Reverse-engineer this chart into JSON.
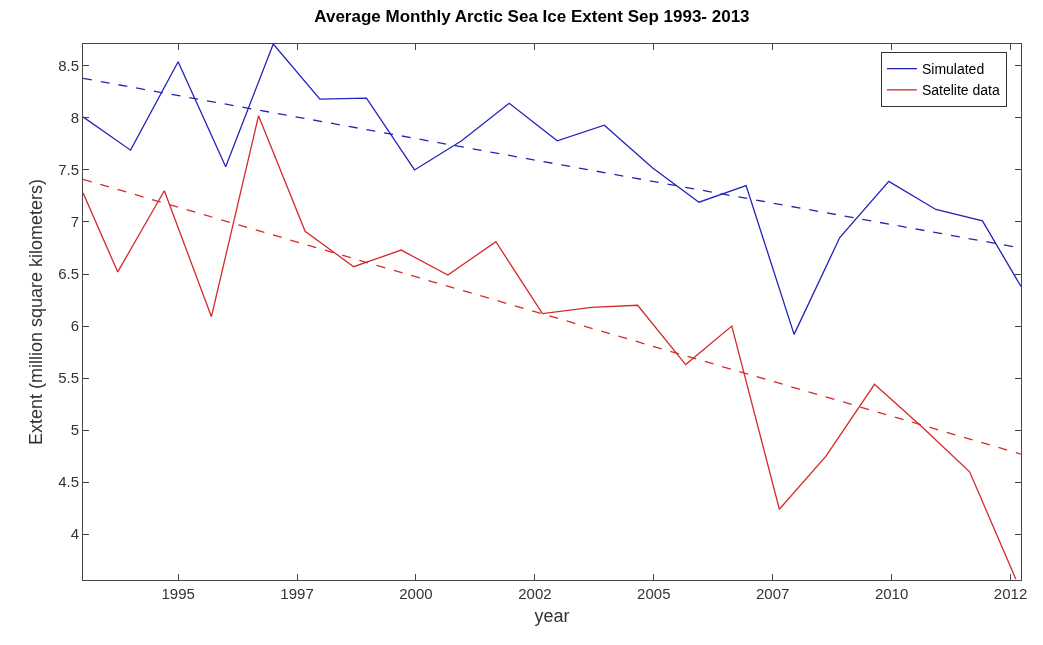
{
  "chart_data": {
    "type": "line",
    "title": "Average Monthly Arctic Sea Ice Extent Sep 1993- 2013",
    "xlabel": "year",
    "ylabel": "Extent (million square kilometers)",
    "xlim": [
      1993,
      2012.72
    ],
    "xticks": [
      {
        "value": 1995,
        "label": "1995"
      },
      {
        "value": 1997.5,
        "label": "1997"
      },
      {
        "value": 2000,
        "label": "2000"
      },
      {
        "value": 2002.5,
        "label": "2002"
      },
      {
        "value": 2005,
        "label": "2005"
      },
      {
        "value": 2007.5,
        "label": "2007"
      },
      {
        "value": 2010,
        "label": "2010"
      },
      {
        "value": 2012.5,
        "label": "2012"
      }
    ],
    "ylim": [
      3.56,
      8.71
    ],
    "yticks": [
      4,
      4.5,
      5,
      5.5,
      6,
      6.5,
      7,
      7.5,
      8,
      8.5
    ],
    "series": [
      {
        "name": "Simulated",
        "color": "#2323b8",
        "x": [
          1993,
          1994,
          1995,
          1996,
          1997,
          1997.98,
          1998.96,
          1999.97,
          2000.96,
          2001.96,
          2002.97,
          2003.96,
          2004.97,
          2005.95,
          2006.94,
          2007.95,
          2008.91,
          2009.94,
          2010.93,
          2011.91,
          2012.72
        ],
        "values": [
          8.01,
          7.69,
          8.54,
          7.53,
          8.71,
          8.18,
          8.19,
          7.5,
          7.78,
          8.14,
          7.78,
          7.93,
          7.52,
          7.19,
          7.35,
          5.92,
          6.85,
          7.39,
          7.12,
          7.01,
          6.38
        ]
      },
      {
        "name": "Satelite data",
        "color": "#d42a2a",
        "x": [
          1993,
          1993.73,
          1994.71,
          1995.7,
          1996.69,
          1997.67,
          1998.69,
          1999.69,
          2000.67,
          2001.68,
          2002.66,
          2003.69,
          2004.66,
          2005.67,
          2006.64,
          2007.64,
          2008.62,
          2009.64,
          2010.64,
          2011.64,
          2012.61
        ],
        "values": [
          7.28,
          6.52,
          7.3,
          6.09,
          8.02,
          6.91,
          6.57,
          6.73,
          6.49,
          6.81,
          6.12,
          6.18,
          6.2,
          5.63,
          6.0,
          4.24,
          4.75,
          5.44,
          5.03,
          4.6,
          3.57
        ]
      },
      {
        "color": "#2323b8",
        "line_style": "dashed",
        "x": [
          1993,
          2012.72
        ],
        "values": [
          8.38,
          6.75
        ]
      },
      {
        "color": "#d42a2a",
        "line_style": "dashed",
        "x": [
          1993,
          2012.72
        ],
        "values": [
          7.41,
          4.77
        ]
      }
    ],
    "line_style": "solid",
    "marker": "none",
    "grid": false,
    "legend": "top right"
  }
}
